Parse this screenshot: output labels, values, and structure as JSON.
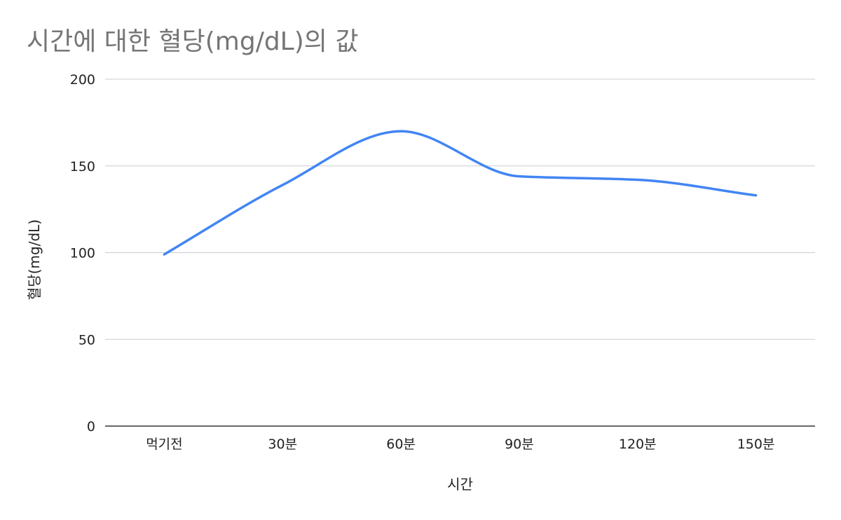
{
  "chart_data": {
    "type": "line",
    "title": "시간에 대한 혈당(mg/dL)의 값",
    "xlabel": "시간",
    "ylabel": "혈당(mg/dL)",
    "categories": [
      "먹기전",
      "30분",
      "60분",
      "90분",
      "120분",
      "150분"
    ],
    "series": [
      {
        "values": [
          99,
          139,
          170,
          144,
          142,
          133
        ],
        "color": "#4285f4"
      }
    ],
    "ylim": [
      0,
      200
    ],
    "yticks": [
      0,
      50,
      100,
      150,
      200
    ],
    "grid": true,
    "smooth": true,
    "legend": "none"
  }
}
